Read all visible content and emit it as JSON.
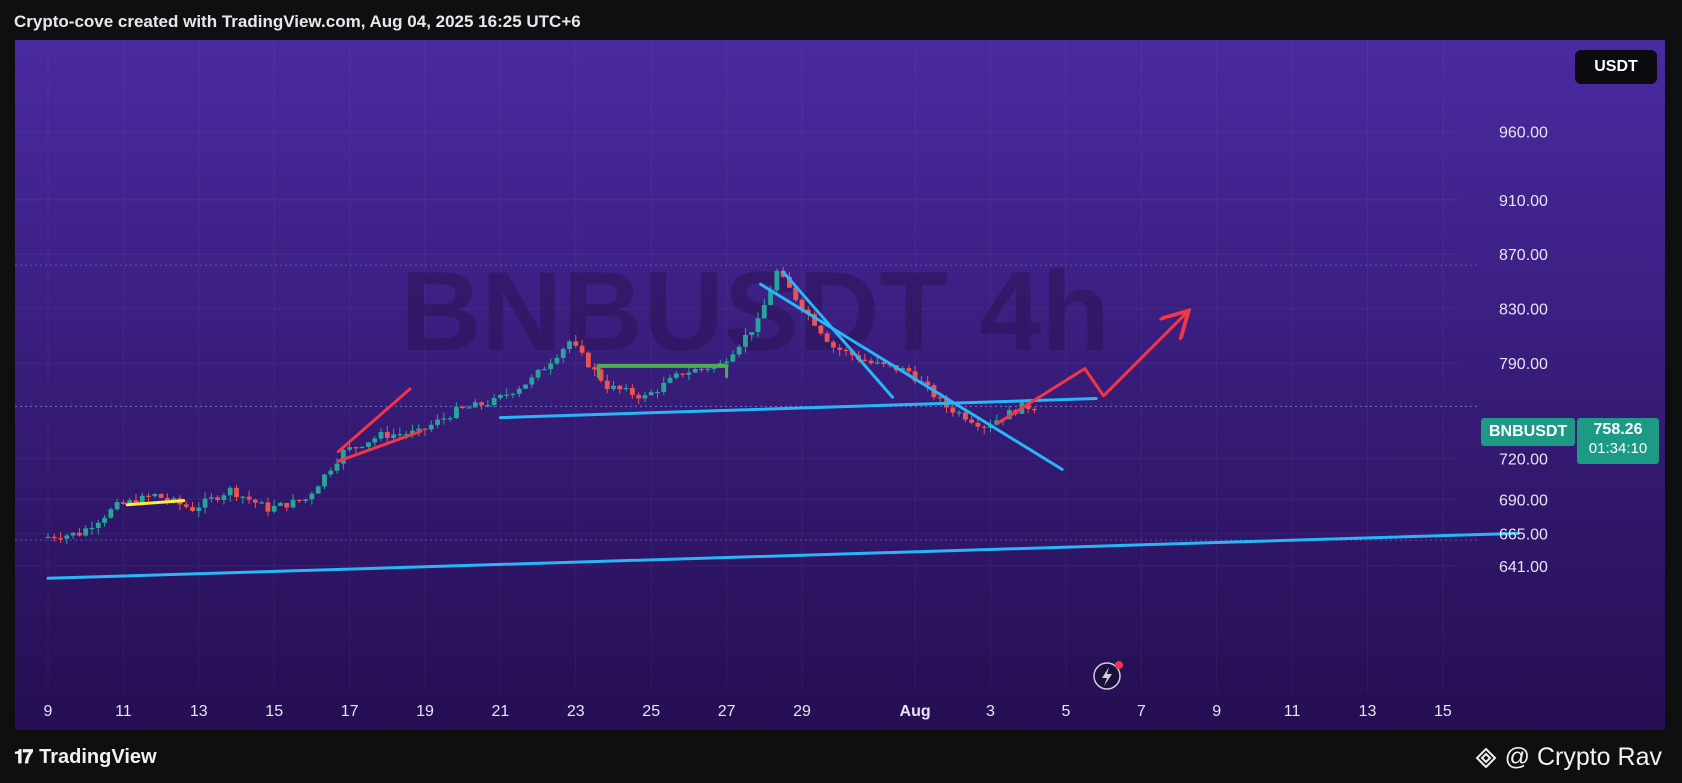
{
  "header": {
    "title": "Crypto-cove created with TradingView.com, Aug 04, 2025 16:25 UTC+6"
  },
  "currency_button": "USDT",
  "price_tag": {
    "symbol": "BNBUSDT",
    "price": "758.26",
    "countdown": "01:34:10"
  },
  "footer": {
    "logo_text": "TradingView",
    "credit": "@ Crypto Rav"
  },
  "colors": {
    "bull": "#26a69a",
    "bear": "#ef5350",
    "trendline": "#29b6f6",
    "pattern_red": "#f23645",
    "range_green": "#4caf50",
    "yellow": "#ffeb3b",
    "bg_top": "#4a2aa0",
    "bg_bottom": "#250e52",
    "tag": "#1d9a85"
  },
  "chart_data": {
    "type": "candlestick",
    "watermark": "BNBUSDT 4h",
    "y_ticks": [
      "960.00",
      "910.00",
      "870.00",
      "830.00",
      "790.00",
      "720.00",
      "690.00",
      "665.00",
      "641.00"
    ],
    "x_ticks": [
      "9",
      "11",
      "13",
      "15",
      "17",
      "19",
      "21",
      "23",
      "25",
      "27",
      "29",
      "Aug",
      "3",
      "5",
      "7",
      "9",
      "11",
      "13",
      "15"
    ],
    "ylim": [
      625,
      990
    ],
    "candle_path": [
      [
        9,
        662
      ],
      [
        10,
        665
      ],
      [
        11,
        685
      ],
      [
        12,
        693
      ],
      [
        13,
        683
      ],
      [
        14,
        697
      ],
      [
        15,
        683
      ],
      [
        16,
        690
      ],
      [
        17,
        725
      ],
      [
        18,
        737
      ],
      [
        19,
        739
      ],
      [
        20,
        755
      ],
      [
        21,
        762
      ],
      [
        22,
        778
      ],
      [
        23,
        806
      ],
      [
        24,
        773
      ],
      [
        25,
        765
      ],
      [
        26,
        783
      ],
      [
        27,
        789
      ],
      [
        28,
        820
      ],
      [
        28.5,
        857
      ],
      [
        29,
        838
      ],
      [
        30,
        802
      ],
      [
        31,
        790
      ],
      [
        32,
        784
      ],
      [
        33,
        758
      ],
      [
        34,
        744
      ],
      [
        35,
        758
      ]
    ],
    "annotations": {
      "support_line_upper": [
        [
          21,
          750
        ],
        [
          36.8,
          764
        ]
      ],
      "support_line_lower": [
        [
          9,
          632
        ],
        [
          48,
          665
        ]
      ],
      "channel_line_a": [
        [
          28.5,
          857
        ],
        [
          31.4,
          765
        ]
      ],
      "channel_line_b": [
        [
          27.9,
          848
        ],
        [
          35.9,
          712
        ]
      ],
      "projection_arrow": [
        [
          34.2,
          746
        ],
        [
          36.5,
          786
        ],
        [
          37,
          766
        ],
        [
          39.2,
          827
        ]
      ],
      "wedge_lines": [
        [
          [
            16.7,
            725
          ],
          [
            18.6,
            771
          ]
        ],
        [
          [
            16.7,
            718
          ],
          [
            18.9,
            740
          ]
        ]
      ],
      "range_box_top": [
        [
          23.6,
          788
        ],
        [
          27,
          788
        ]
      ],
      "range_box_sides": [
        [
          [
            23.6,
            788
          ],
          [
            23.6,
            780
          ]
        ],
        [
          [
            27,
            788
          ],
          [
            27,
            780
          ]
        ]
      ],
      "yellow_segment": [
        [
          11.1,
          686
        ],
        [
          12.6,
          689
        ]
      ]
    }
  }
}
